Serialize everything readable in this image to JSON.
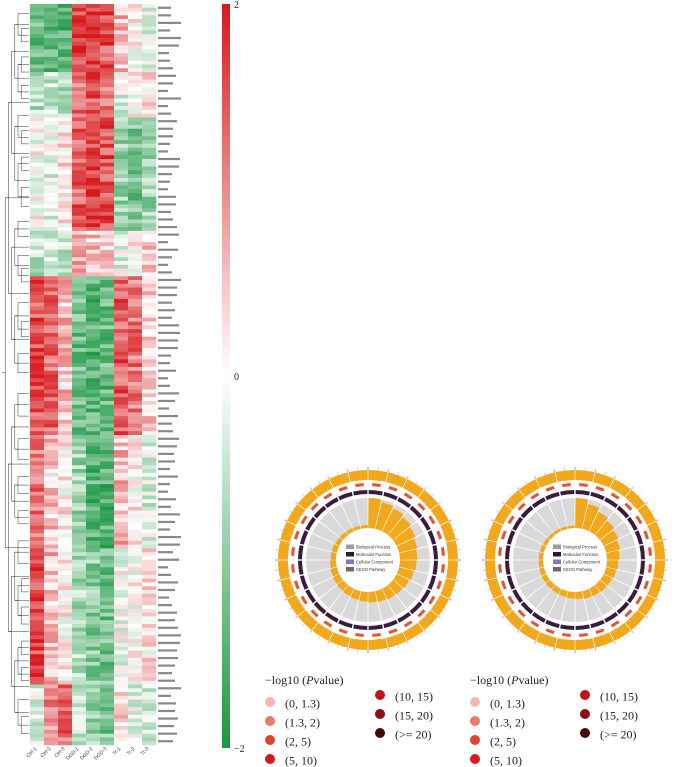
{
  "chart_data": [
    {
      "type": "heatmap",
      "columns": [
        "Ctrl-1",
        "Ctrl-2",
        "Ctrl-3",
        "DGD-1",
        "DGD-2",
        "DGD-3",
        "Tr-1",
        "Tr-2",
        "Tr-3"
      ],
      "groups": [
        {
          "n": 18,
          "profile": [
            -1.2,
            -1.3,
            -1.4,
            1.7,
            1.8,
            1.5,
            0.6,
            0.1,
            -0.3
          ]
        },
        {
          "n": 12,
          "profile": [
            -0.6,
            -0.5,
            -0.8,
            1.2,
            1.5,
            1.3,
            -0.3,
            0.0,
            0.3
          ]
        },
        {
          "n": 30,
          "profile": [
            0.0,
            -0.2,
            0.3,
            1.4,
            1.7,
            1.5,
            -0.9,
            -1.1,
            -0.8
          ]
        },
        {
          "n": 12,
          "profile": [
            -0.6,
            -0.3,
            -0.5,
            0.7,
            0.5,
            0.6,
            -0.2,
            0.1,
            0.4
          ]
        },
        {
          "n": 42,
          "profile": [
            1.5,
            1.3,
            0.6,
            -1.2,
            -1.4,
            -1.3,
            1.4,
            1.2,
            0.4
          ]
        },
        {
          "n": 30,
          "profile": [
            1.2,
            0.5,
            0.2,
            -0.8,
            -1.4,
            -1.5,
            0.6,
            0.1,
            -0.3
          ]
        },
        {
          "n": 36,
          "profile": [
            1.6,
            0.6,
            0.1,
            -0.7,
            -1.0,
            -1.2,
            -0.1,
            0.0,
            0.2
          ]
        },
        {
          "n": 16,
          "profile": [
            -0.3,
            1.0,
            1.3,
            -0.4,
            -0.8,
            -1.1,
            0.5,
            -0.2,
            -0.4
          ]
        }
      ],
      "colorbar": {
        "ticks": [
          "2",
          "0",
          "−2"
        ],
        "colors": {
          "high": "#d7191c",
          "mid": "#ffffff",
          "low": "#1a9641"
        }
      }
    },
    {
      "type": "other",
      "kind": "circos-enrichment",
      "inner_legend": [
        "Biological Process",
        "Molecular Function",
        "Cellular Component",
        "KEGG Pathway"
      ],
      "sector_count": 28
    },
    {
      "type": "other",
      "kind": "circos-enrichment",
      "inner_legend": [
        "Biological Process",
        "Molecular Function",
        "Cellular Component",
        "KEGG Pathway"
      ],
      "sector_count": 28
    }
  ],
  "legend": {
    "title_prefix": "−log10 (",
    "title_italic": "P",
    "title_suffix": "value)",
    "items": [
      {
        "label": "(0, 1.3)",
        "color": "#f4b9ae"
      },
      {
        "label": "(1.3, 2)",
        "color": "#ec7a65"
      },
      {
        "label": "(2, 5)",
        "color": "#e2412e"
      },
      {
        "label": "(5, 10)",
        "color": "#d7191c"
      },
      {
        "label": "(10, 15)",
        "color": "#c0141a"
      },
      {
        "label": "(15, 20)",
        "color": "#8e0c14"
      },
      {
        "label": "(>= 20)",
        "color": "#4a060d"
      }
    ]
  },
  "colors": {
    "sector_orange": "#f2a81d",
    "bar_orange": "#f2a81d",
    "grid_grey": "#d9d9d9",
    "track_dark": "#3b1a3f",
    "track_red": "#e8502f"
  }
}
